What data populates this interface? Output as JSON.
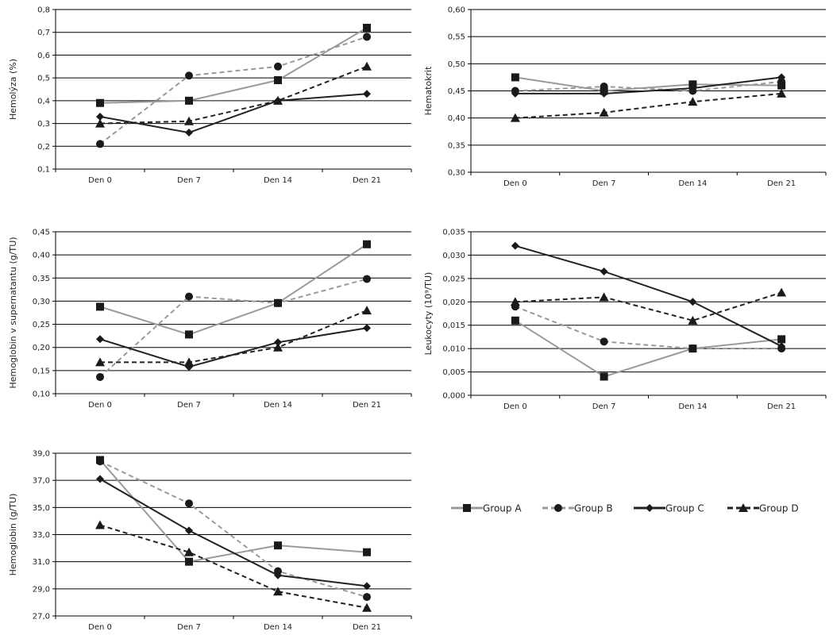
{
  "legend": [
    {
      "name": "Group A",
      "color": "#9a9a9a",
      "dash": "solid",
      "marker": "square"
    },
    {
      "name": "Group B",
      "color": "#9a9a9a",
      "dash": "dashed",
      "marker": "circle"
    },
    {
      "name": "Group C",
      "color": "#222222",
      "dash": "solid",
      "marker": "diamond"
    },
    {
      "name": "Group D",
      "color": "#222222",
      "dash": "dashed",
      "marker": "triangle"
    }
  ],
  "chart_data": [
    {
      "type": "line",
      "ylabel": "Hemolýza (%)",
      "categories": [
        "Den 0",
        "Den 7",
        "Den 14",
        "Den 21"
      ],
      "ylim": [
        0.1,
        0.8
      ],
      "yticks": [
        "0,1",
        "0,2",
        "0,3",
        "0,4",
        "0,5",
        "0,6",
        "0,7",
        "0,8"
      ],
      "series": [
        {
          "name": "Group A",
          "values": [
            0.39,
            0.4,
            0.49,
            0.72
          ]
        },
        {
          "name": "Group B",
          "values": [
            0.21,
            0.51,
            0.55,
            0.68
          ]
        },
        {
          "name": "Group C",
          "values": [
            0.33,
            0.26,
            0.4,
            0.43
          ]
        },
        {
          "name": "Group D",
          "values": [
            0.3,
            0.31,
            0.4,
            0.55
          ]
        }
      ]
    },
    {
      "type": "line",
      "ylabel": "Hematokrit",
      "categories": [
        "Den 0",
        "Den 7",
        "Den 14",
        "Den 21"
      ],
      "ylim": [
        0.3,
        0.6
      ],
      "yticks": [
        "0,30",
        "0,35",
        "0,40",
        "0,45",
        "0,50",
        "0,55",
        "0,60"
      ],
      "series": [
        {
          "name": "Group A",
          "values": [
            0.475,
            0.45,
            0.462,
            0.46
          ]
        },
        {
          "name": "Group B",
          "values": [
            0.45,
            0.458,
            0.45,
            0.467
          ]
        },
        {
          "name": "Group C",
          "values": [
            0.445,
            0.445,
            0.455,
            0.475
          ]
        },
        {
          "name": "Group D",
          "values": [
            0.4,
            0.41,
            0.43,
            0.445
          ]
        }
      ]
    },
    {
      "type": "line",
      "ylabel": "Hemoglobin v supernatantu (g/TU)",
      "categories": [
        "Den 0",
        "Den 7",
        "Den 14",
        "Den 21"
      ],
      "ylim": [
        0.1,
        0.45
      ],
      "yticks": [
        "0,10",
        "0,15",
        "0,20",
        "0,25",
        "0,30",
        "0,35",
        "0,40",
        "0,45"
      ],
      "series": [
        {
          "name": "Group A",
          "values": [
            0.288,
            0.228,
            0.296,
            0.423
          ]
        },
        {
          "name": "Group B",
          "values": [
            0.136,
            0.31,
            0.296,
            0.348
          ]
        },
        {
          "name": "Group C",
          "values": [
            0.218,
            0.158,
            0.211,
            0.242
          ]
        },
        {
          "name": "Group D",
          "values": [
            0.168,
            0.168,
            0.2,
            0.28
          ]
        }
      ]
    },
    {
      "type": "line",
      "ylabel": "Leukocyty (10⁹/TU)",
      "categories": [
        "Den 0",
        "Den 7",
        "Den 14",
        "Den 21"
      ],
      "ylim": [
        0.0,
        0.035
      ],
      "yticks": [
        "0,000",
        "0,005",
        "0,010",
        "0,015",
        "0,020",
        "0,025",
        "0,030",
        "0,035"
      ],
      "series": [
        {
          "name": "Group A",
          "values": [
            0.016,
            0.004,
            0.01,
            0.012
          ]
        },
        {
          "name": "Group B",
          "values": [
            0.019,
            0.0115,
            0.01,
            0.01
          ]
        },
        {
          "name": "Group C",
          "values": [
            0.032,
            0.0265,
            0.02,
            0.0105
          ]
        },
        {
          "name": "Group D",
          "values": [
            0.02,
            0.021,
            0.016,
            0.022
          ]
        }
      ]
    },
    {
      "type": "line",
      "ylabel": "Hemoglobin (g/TU)",
      "categories": [
        "Den 0",
        "Den 7",
        "Den 14",
        "Den 21"
      ],
      "ylim": [
        27.0,
        39.0
      ],
      "yticks": [
        "27,0",
        "29,0",
        "31,0",
        "33,0",
        "35,0",
        "37,0",
        "39,0"
      ],
      "series": [
        {
          "name": "Group A",
          "values": [
            38.5,
            31.0,
            32.2,
            31.7
          ]
        },
        {
          "name": "Group B",
          "values": [
            38.4,
            35.3,
            30.3,
            28.4
          ]
        },
        {
          "name": "Group C",
          "values": [
            37.1,
            33.3,
            30.0,
            29.2
          ]
        },
        {
          "name": "Group D",
          "values": [
            33.7,
            31.7,
            28.8,
            27.6
          ]
        }
      ]
    }
  ]
}
